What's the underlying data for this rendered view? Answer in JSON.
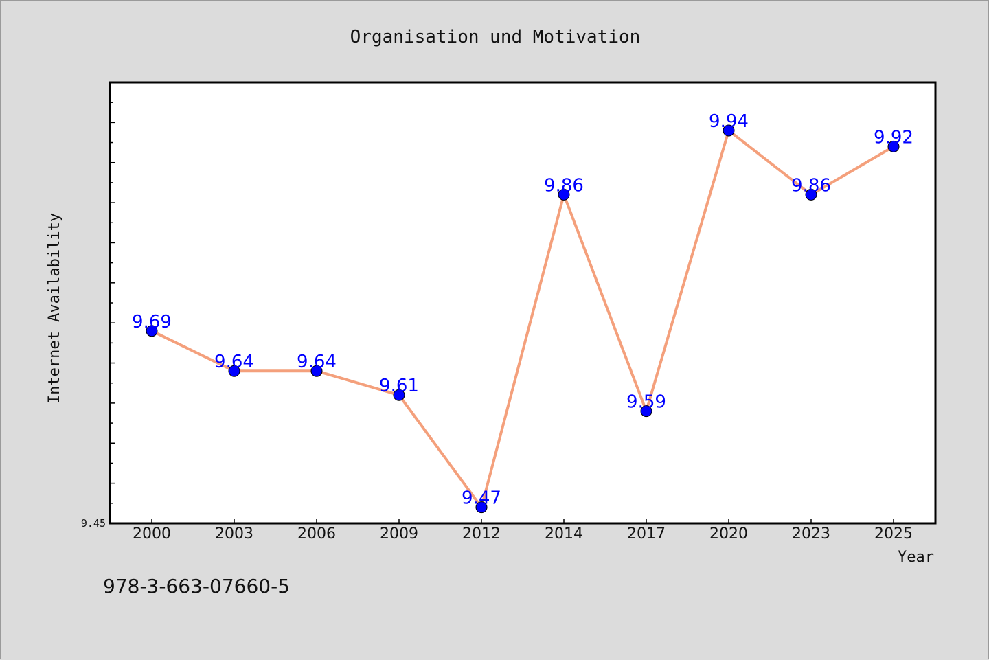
{
  "chart_data": {
    "type": "line",
    "title": "Organisation und Motivation",
    "xlabel": "Year",
    "ylabel": "Internet Availability",
    "categories": [
      "2000",
      "2003",
      "2006",
      "2009",
      "2012",
      "2014",
      "2017",
      "2020",
      "2023",
      "2025"
    ],
    "series": [
      {
        "values": [
          9.69,
          9.64,
          9.64,
          9.61,
          9.47,
          9.86,
          9.59,
          9.94,
          9.86,
          9.92
        ],
        "data_labels": [
          "9.69",
          "9.64",
          "9.64",
          "9.61",
          "9.47",
          "9.86",
          "9.59",
          "9.94",
          "9.86",
          "9.92"
        ]
      }
    ],
    "y_tick_label": "9.45",
    "ylim": [
      9.45,
      10.0
    ],
    "grid": false,
    "line_color": "#f4a07c",
    "marker_color": "#0000ff",
    "label_color": "#0000ff"
  },
  "footer_text": "978-3-663-07660-5"
}
